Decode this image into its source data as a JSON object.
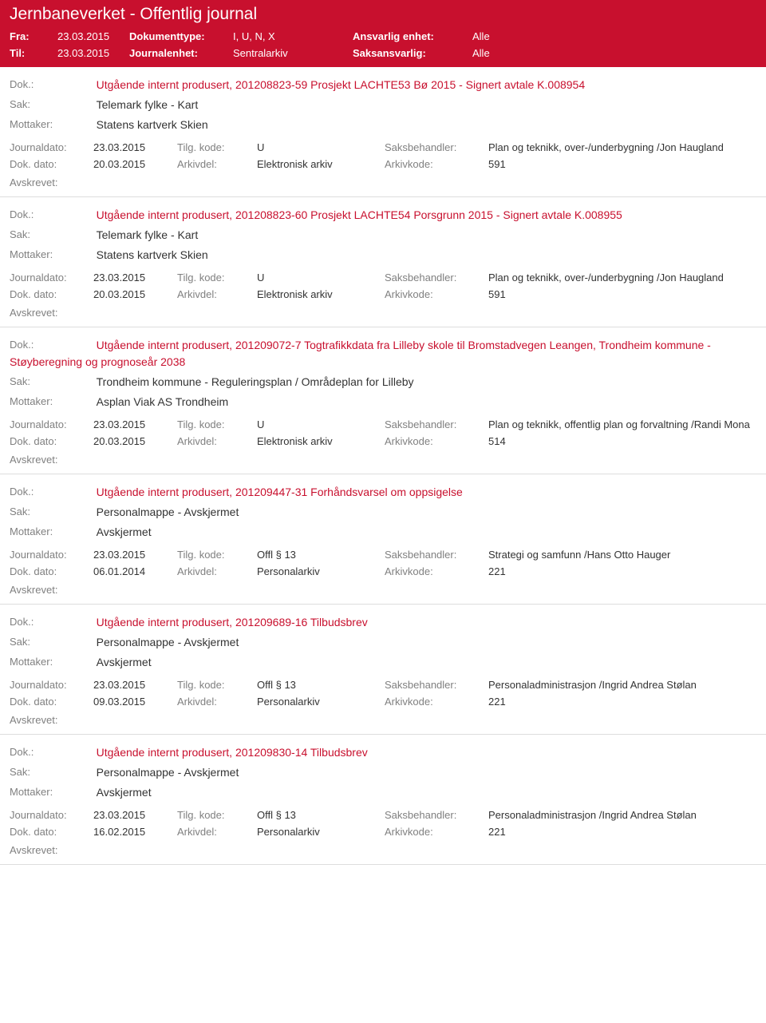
{
  "header": {
    "title": "Jernbaneverket - Offentlig journal",
    "fra_label": "Fra:",
    "fra_val": "23.03.2015",
    "til_label": "Til:",
    "til_val": "23.03.2015",
    "doktype_label": "Dokumenttype:",
    "doktype_val": "I, U, N, X",
    "journalenhet_label": "Journalenhet:",
    "journalenhet_val": "Sentralarkiv",
    "ansvarlig_label": "Ansvarlig enhet:",
    "ansvarlig_val": "Alle",
    "saksansvarlig_label": "Saksansvarlig:",
    "saksansvarlig_val": "Alle"
  },
  "labels": {
    "dok": "Dok.:",
    "sak": "Sak:",
    "mottaker": "Mottaker:",
    "journaldato": "Journaldato:",
    "tilgkode": "Tilg. kode:",
    "saksbehandler": "Saksbehandler:",
    "dokdato": "Dok. dato:",
    "arkivdel": "Arkivdel:",
    "arkivkode": "Arkivkode:",
    "avskrevet": "Avskrevet:"
  },
  "entries": [
    {
      "dok": "Utgående internt produsert, 201208823-59 Prosjekt LACHTE53 Bø 2015 - Signert avtale K.008954",
      "sak": "Telemark fylke - Kart",
      "mottaker": "Statens kartverk Skien",
      "journaldato": "23.03.2015",
      "tilgkode": "U",
      "saksbehandler": "Plan og teknikk, over-/underbygning /Jon Haugland",
      "dokdato": "20.03.2015",
      "arkivdel": "Elektronisk arkiv",
      "arkivkode": "591"
    },
    {
      "dok": "Utgående internt produsert, 201208823-60 Prosjekt LACHTE54 Porsgrunn 2015 - Signert avtale K.008955",
      "sak": "Telemark fylke - Kart",
      "mottaker": "Statens kartverk Skien",
      "journaldato": "23.03.2015",
      "tilgkode": "U",
      "saksbehandler": "Plan og teknikk, over-/underbygning /Jon Haugland",
      "dokdato": "20.03.2015",
      "arkivdel": "Elektronisk arkiv",
      "arkivkode": "591"
    },
    {
      "dok": "Utgående internt produsert, 201209072-7 Togtrafikkdata fra Lilleby skole til Bromstadvegen Leangen, Trondheim kommune - Støyberegning og prognoseår 2038",
      "sak": "Trondheim kommune - Reguleringsplan / Områdeplan for Lilleby",
      "mottaker": "Asplan Viak AS Trondheim",
      "journaldato": "23.03.2015",
      "tilgkode": "U",
      "saksbehandler": "Plan og teknikk, offentlig plan og forvaltning /Randi Mona",
      "dokdato": "20.03.2015",
      "arkivdel": "Elektronisk arkiv",
      "arkivkode": "514"
    },
    {
      "dok": "Utgående internt produsert, 201209447-31 Forhåndsvarsel om oppsigelse",
      "sak": "Personalmappe - Avskjermet",
      "mottaker": "Avskjermet",
      "journaldato": "23.03.2015",
      "tilgkode": "Offl § 13",
      "saksbehandler": "Strategi og samfunn /Hans Otto Hauger",
      "dokdato": "06.01.2014",
      "arkivdel": "Personalarkiv",
      "arkivkode": "221"
    },
    {
      "dok": "Utgående internt produsert, 201209689-16 Tilbudsbrev",
      "sak": "Personalmappe - Avskjermet",
      "mottaker": "Avskjermet",
      "journaldato": "23.03.2015",
      "tilgkode": "Offl § 13",
      "saksbehandler": "Personaladministrasjon /Ingrid Andrea Stølan",
      "dokdato": "09.03.2015",
      "arkivdel": "Personalarkiv",
      "arkivkode": "221"
    },
    {
      "dok": "Utgående internt produsert, 201209830-14 Tilbudsbrev",
      "sak": "Personalmappe - Avskjermet",
      "mottaker": "Avskjermet",
      "journaldato": "23.03.2015",
      "tilgkode": "Offl § 13",
      "saksbehandler": "Personaladministrasjon /Ingrid Andrea Stølan",
      "dokdato": "16.02.2015",
      "arkivdel": "Personalarkiv",
      "arkivkode": "221"
    }
  ]
}
